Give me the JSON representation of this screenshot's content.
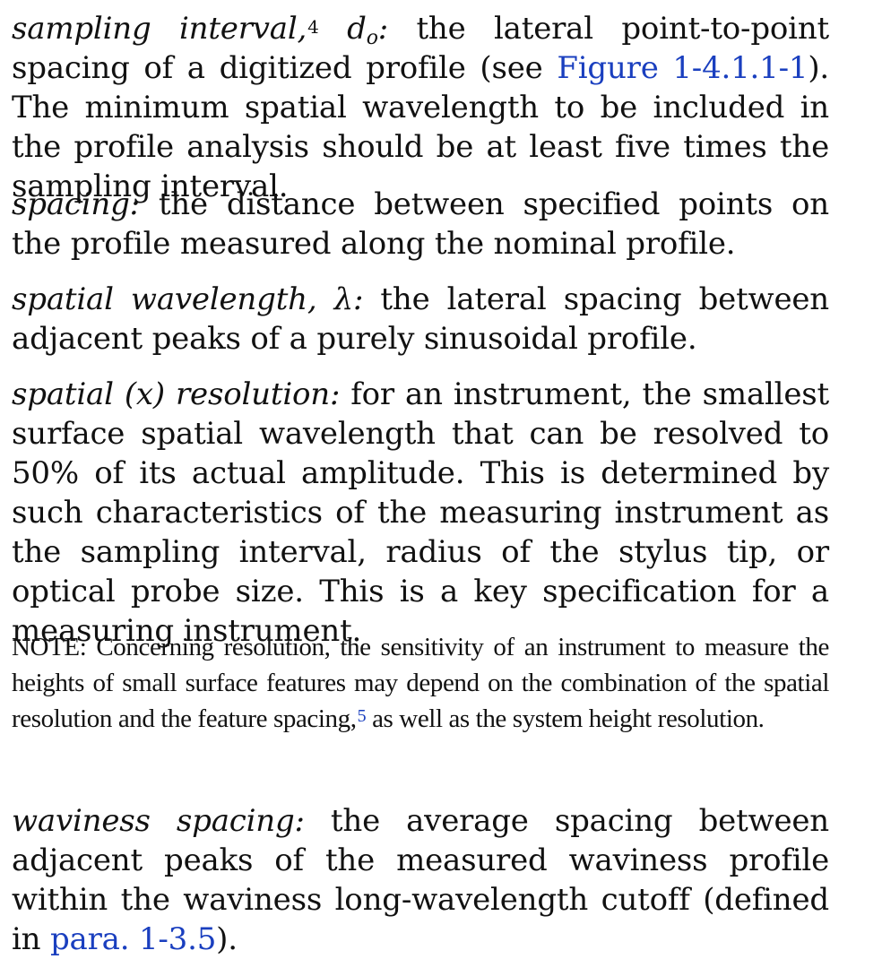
{
  "definitions": [
    {
      "term": "sampling interval,",
      "footnote": "4",
      "symbol": "d",
      "symbol_sub": "o",
      "symbol_colon": ":",
      "text_before_link": " the lateral point-to-point spacing of a digitized profile (see ",
      "link": "Figure 1-4.1.1-1",
      "text_after_link": "). The minimum spatial wavelength to be included in the profile analysis should be at least five times the sampling interval."
    },
    {
      "term": "spacing:",
      "text": " the distance between specified points on the profile measured along the nominal profile."
    },
    {
      "term": "spatial wavelength, λ:",
      "text": " the lateral spacing between adjacent peaks of a purely sinusoidal profile."
    },
    {
      "term": "spatial (x) resolution:",
      "text": " for an instrument, the smallest surface spatial wavelength that can be resolved to 50% of its actual amplitude. This is determined by such char­acteristics of the measuring instrument as the sampling interval, radius of the stylus tip, or optical probe size. This is a key specification for a measuring instrument."
    },
    {
      "term": "waviness spacing:",
      "text_before_link": " the average spacing between adjacent peaks of the measured waviness profile within the wavi­ness long-wavelength cutoff (defined in ",
      "link": "para. 1-3.5",
      "text_after_link": ")."
    }
  ],
  "note": {
    "text_before_footnote": "NOTE: Concerning resolution, the sensitivity of an instrument to measure the heights of small surface features may depend on the combination of the spatial resolution and the feature spacing,",
    "footnote": "5",
    "text_after_footnote": " as well as the system height resolution."
  },
  "colors": {
    "text": "#111111",
    "link": "#1a3fbf",
    "background": "#ffffff"
  }
}
